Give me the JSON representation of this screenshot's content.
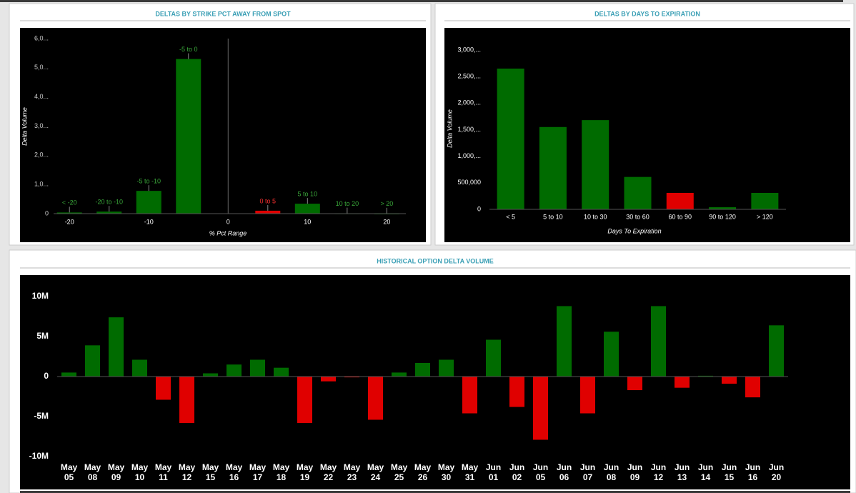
{
  "chart_data": [
    {
      "type": "bar",
      "title": "DELTAS BY STRIKE PCT AWAY FROM SPOT",
      "ylabel": "Delta Volume",
      "xlabel": "% Pct Range",
      "x": [
        -20,
        -15,
        -10,
        -5,
        5,
        10,
        15,
        20
      ],
      "labels": [
        "< -20",
        "-20 to -10",
        "-5 to -10",
        "-5 to 0",
        "0 to 5",
        "5 to 10",
        "10 to 20",
        "> 20"
      ],
      "values": [
        40000,
        70000,
        780000,
        5300000,
        100000,
        340000,
        10000,
        5000
      ],
      "colors": [
        "#006b00",
        "#006b00",
        "#006b00",
        "#006b00",
        "#e00000",
        "#006b00",
        "#006b00",
        "#006b00"
      ],
      "xlim": [
        -22,
        22.4
      ],
      "xticks": [
        -20,
        -10,
        0,
        10,
        20
      ],
      "ylim": [
        0,
        6000000
      ],
      "yticks": [
        0,
        {
          "value": 1000000,
          "label": "1,0..."
        },
        {
          "value": 2000000,
          "label": "2,0..."
        },
        {
          "value": 3000000,
          "label": "3,0..."
        },
        {
          "value": 4000000,
          "label": "4,0..."
        },
        {
          "value": 5000000,
          "label": "5,0..."
        },
        {
          "value": 6000000,
          "label": "6,0..."
        }
      ]
    },
    {
      "type": "bar",
      "title": "DELTAS BY DAYS TO EXPIRATION",
      "ylabel": "Delta Volume",
      "xlabel": "Days To Expiration",
      "categories": [
        "< 5",
        "5 to 10",
        "10 to 30",
        "30 to 60",
        "60 to 90",
        "90 to 120",
        "> 120"
      ],
      "values": [
        2650000,
        1550000,
        1680000,
        610000,
        310000,
        40000,
        310000
      ],
      "colors": [
        "#006b00",
        "#006b00",
        "#006b00",
        "#006b00",
        "#e00000",
        "#006b00",
        "#006b00"
      ],
      "ylim": [
        0,
        3000000
      ],
      "yticks": [
        0,
        {
          "value": 500000,
          "label": "500,000"
        },
        {
          "value": 1000000,
          "label": "1,000,..."
        },
        {
          "value": 1500000,
          "label": "1,500,..."
        },
        {
          "value": 2000000,
          "label": "2,000,..."
        },
        {
          "value": 2500000,
          "label": "2,500,..."
        },
        {
          "value": 3000000,
          "label": "3,000,..."
        }
      ]
    },
    {
      "type": "bar",
      "title": "HISTORICAL OPTION DELTA VOLUME",
      "categories": [
        "May 05",
        "May 08",
        "May 09",
        "May 10",
        "May 11",
        "May 12",
        "May 15",
        "May 16",
        "May 17",
        "May 18",
        "May 19",
        "May 22",
        "May 23",
        "May 24",
        "May 25",
        "May 26",
        "May 30",
        "May 31",
        "Jun 01",
        "Jun 02",
        "Jun 05",
        "Jun 06",
        "Jun 07",
        "Jun 08",
        "Jun 09",
        "Jun 12",
        "Jun 13",
        "Jun 14",
        "Jun 15",
        "Jun 16",
        "Jun 20"
      ],
      "values": [
        500000,
        3900000,
        7400000,
        2100000,
        -2900000,
        -5800000,
        400000,
        1500000,
        2100000,
        1100000,
        -5800000,
        -600000,
        -100000,
        -5400000,
        500000,
        1700000,
        2100000,
        -4600000,
        4600000,
        -3800000,
        -7900000,
        8800000,
        -4600000,
        5600000,
        -1700000,
        8800000,
        -1400000,
        100000,
        -900000,
        -2600000,
        6400000
      ],
      "positive_color": "#006b00",
      "negative_color": "#e00000",
      "ylim": [
        -10000000,
        12500000
      ],
      "yticks": [
        {
          "value": -10000000,
          "label": "-10M"
        },
        {
          "value": -5000000,
          "label": "-5M"
        },
        0,
        {
          "value": 5000000,
          "label": "5M"
        },
        {
          "value": 10000000,
          "label": "10M"
        }
      ]
    }
  ]
}
